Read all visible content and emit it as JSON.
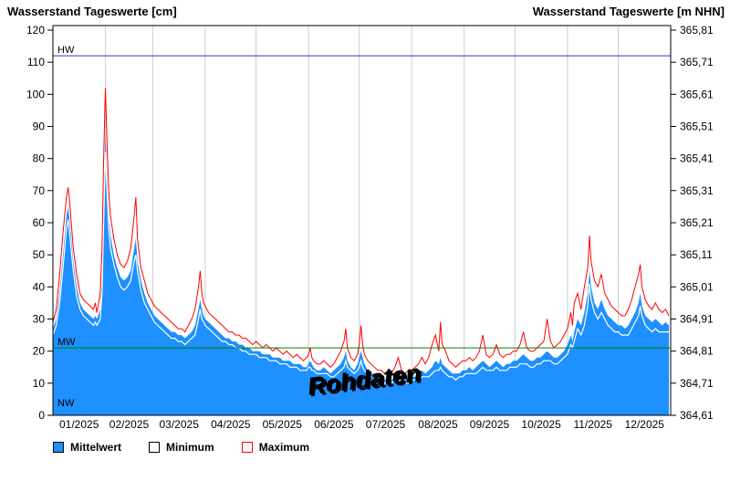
{
  "watermark": {
    "text": "Rohdaten"
  },
  "chart_data": {
    "type": "area",
    "title": "Wasserstand Tageswerte",
    "y_left": {
      "label": "Wasserstand Tageswerte [cm]",
      "min": 0,
      "max": 120,
      "tick_step": 10,
      "tick_values": [
        0,
        10,
        20,
        30,
        40,
        50,
        60,
        70,
        80,
        90,
        100,
        110,
        120
      ]
    },
    "y_right": {
      "label": "Wasserstand Tageswerte [m NHN]",
      "min": 364.61,
      "max": 365.81,
      "tick_step": 0.1,
      "tick_labels": [
        "364,61",
        "364,71",
        "364,81",
        "364,91",
        "365,01",
        "365,11",
        "365,21",
        "365,31",
        "365,41",
        "365,51",
        "365,61",
        "365,71",
        "365,81"
      ]
    },
    "x_axis": {
      "labels": [
        "01/2025",
        "02/2025",
        "03/2025",
        "04/2025",
        "05/2025",
        "06/2025",
        "07/2025",
        "08/2025",
        "09/2025",
        "10/2025",
        "11/2025",
        "12/2025"
      ],
      "month_start_days": [
        0,
        31,
        59,
        90,
        120,
        151,
        181,
        212,
        243,
        273,
        304,
        334,
        365
      ],
      "grid": true
    },
    "reference_lines": [
      {
        "name": "HW",
        "value": 112,
        "color": "#3333CC",
        "line_visible": true
      },
      {
        "name": "MW",
        "value": 21,
        "color": "#008000",
        "line_visible": true
      },
      {
        "name": "NW",
        "value": 2,
        "color": "#888888",
        "line_visible": false
      }
    ],
    "colors": {
      "mittelwert_fill": "#1E90FF",
      "minimum_line": "#FFFFFF",
      "maximum_line": "#FF0000",
      "grid": "#CCCCCC"
    },
    "legend": {
      "position": "bottom",
      "entries": [
        {
          "label": "Mittelwert",
          "swatch_fill": "#1E90FF",
          "swatch_border": "#000000"
        },
        {
          "label": "Minimum",
          "swatch_fill": "#FFFFFF",
          "swatch_border": "#000000"
        },
        {
          "label": "Maximum",
          "swatch_fill": "#FFFFFF",
          "swatch_border": "#FF0000"
        }
      ]
    },
    "series": {
      "x_days": [
        0,
        2,
        4,
        6,
        8,
        9,
        10,
        12,
        14,
        16,
        18,
        20,
        22,
        24,
        25,
        26,
        28,
        29,
        30,
        31,
        32,
        33,
        34,
        36,
        38,
        40,
        42,
        44,
        46,
        48,
        49,
        50,
        52,
        54,
        56,
        58,
        60,
        62,
        64,
        66,
        68,
        70,
        72,
        74,
        76,
        78,
        80,
        82,
        84,
        86,
        87,
        88,
        89,
        90,
        92,
        94,
        96,
        98,
        100,
        102,
        104,
        106,
        108,
        110,
        112,
        114,
        116,
        118,
        120,
        122,
        124,
        126,
        128,
        130,
        132,
        134,
        136,
        138,
        140,
        142,
        144,
        146,
        148,
        150,
        151,
        152,
        153,
        154,
        156,
        158,
        160,
        162,
        164,
        166,
        168,
        170,
        172,
        173,
        174,
        176,
        178,
        180,
        181,
        182,
        183,
        184,
        186,
        188,
        190,
        192,
        194,
        196,
        198,
        200,
        202,
        204,
        206,
        208,
        210,
        212,
        214,
        216,
        218,
        220,
        222,
        224,
        226,
        228,
        229,
        230,
        232,
        234,
        236,
        238,
        240,
        242,
        244,
        246,
        248,
        250,
        252,
        254,
        256,
        258,
        260,
        262,
        264,
        266,
        268,
        270,
        272,
        274,
        276,
        278,
        280,
        282,
        284,
        286,
        288,
        290,
        292,
        294,
        296,
        298,
        300,
        302,
        304,
        306,
        307,
        308,
        310,
        312,
        314,
        316,
        317,
        318,
        320,
        322,
        324,
        326,
        328,
        330,
        332,
        334,
        336,
        338,
        340,
        342,
        344,
        346,
        347,
        348,
        350,
        352,
        354,
        356,
        358,
        360,
        362,
        364
      ],
      "mittelwert": [
        27,
        30,
        38,
        50,
        62,
        65,
        60,
        48,
        40,
        35,
        33,
        32,
        31,
        30,
        31,
        30,
        33,
        42,
        66,
        88,
        74,
        62,
        56,
        50,
        46,
        43,
        42,
        43,
        45,
        52,
        55,
        48,
        42,
        38,
        35,
        33,
        31,
        30,
        29,
        28,
        27,
        26,
        26,
        25,
        25,
        24,
        25,
        26,
        28,
        33,
        36,
        33,
        31,
        30,
        29,
        28,
        27,
        26,
        25,
        24,
        24,
        23,
        23,
        22,
        22,
        21,
        21,
        20,
        20,
        20,
        19,
        19,
        19,
        18,
        18,
        18,
        17,
        17,
        17,
        16,
        16,
        16,
        15,
        15,
        16,
        17,
        16,
        15,
        14,
        14,
        15,
        14,
        13,
        14,
        15,
        16,
        18,
        20,
        17,
        15,
        14,
        16,
        18,
        20,
        18,
        16,
        14,
        13,
        13,
        12,
        12,
        11,
        12,
        11,
        12,
        13,
        12,
        11,
        12,
        12,
        12,
        13,
        14,
        13,
        14,
        15,
        17,
        16,
        18,
        16,
        15,
        14,
        13,
        13,
        13,
        14,
        14,
        15,
        14,
        15,
        16,
        17,
        16,
        15,
        16,
        17,
        16,
        15,
        16,
        16,
        17,
        17,
        18,
        19,
        18,
        17,
        17,
        18,
        18,
        19,
        20,
        19,
        18,
        18,
        19,
        20,
        22,
        25,
        23,
        26,
        30,
        28,
        32,
        38,
        45,
        40,
        35,
        33,
        36,
        33,
        31,
        30,
        29,
        28,
        28,
        27,
        28,
        30,
        32,
        35,
        38,
        34,
        31,
        30,
        29,
        30,
        29,
        28,
        29,
        28
      ],
      "minimum": [
        25,
        28,
        35,
        46,
        58,
        61,
        56,
        45,
        37,
        33,
        31,
        30,
        29,
        28,
        29,
        28,
        30,
        38,
        60,
        82,
        69,
        58,
        52,
        47,
        43,
        40,
        39,
        40,
        42,
        48,
        50,
        45,
        39,
        35,
        33,
        31,
        29,
        28,
        27,
        26,
        25,
        24,
        24,
        23,
        23,
        22,
        23,
        24,
        25,
        30,
        33,
        30,
        29,
        28,
        27,
        26,
        25,
        24,
        23,
        23,
        22,
        22,
        21,
        21,
        20,
        20,
        19,
        19,
        19,
        18,
        18,
        18,
        17,
        17,
        17,
        16,
        16,
        16,
        15,
        15,
        15,
        14,
        14,
        14,
        15,
        15,
        14,
        14,
        13,
        13,
        13,
        13,
        12,
        12,
        13,
        14,
        15,
        17,
        15,
        14,
        13,
        14,
        15,
        17,
        15,
        14,
        13,
        12,
        12,
        11,
        11,
        10,
        10,
        10,
        11,
        11,
        11,
        10,
        10,
        11,
        11,
        11,
        12,
        12,
        12,
        13,
        14,
        14,
        15,
        14,
        13,
        12,
        12,
        11,
        12,
        12,
        13,
        13,
        13,
        13,
        14,
        15,
        14,
        14,
        14,
        15,
        14,
        14,
        14,
        15,
        15,
        15,
        16,
        16,
        16,
        15,
        15,
        16,
        16,
        17,
        17,
        17,
        16,
        16,
        17,
        18,
        19,
        22,
        21,
        23,
        27,
        25,
        28,
        34,
        41,
        36,
        32,
        30,
        32,
        30,
        28,
        27,
        26,
        26,
        25,
        25,
        25,
        27,
        29,
        31,
        34,
        31,
        28,
        27,
        26,
        27,
        26,
        26,
        26,
        26
      ],
      "maximum": [
        29,
        33,
        44,
        57,
        68,
        71,
        66,
        52,
        44,
        38,
        36,
        35,
        34,
        33,
        35,
        32,
        38,
        52,
        80,
        102,
        84,
        70,
        62,
        55,
        50,
        47,
        46,
        48,
        52,
        62,
        68,
        55,
        46,
        42,
        38,
        36,
        34,
        33,
        32,
        31,
        30,
        29,
        28,
        27,
        27,
        26,
        28,
        30,
        33,
        40,
        45,
        38,
        35,
        34,
        32,
        31,
        30,
        29,
        28,
        27,
        26,
        26,
        25,
        25,
        24,
        24,
        23,
        22,
        23,
        22,
        21,
        22,
        21,
        20,
        21,
        20,
        19,
        20,
        19,
        18,
        19,
        18,
        17,
        18,
        19,
        21,
        18,
        17,
        16,
        16,
        17,
        16,
        15,
        16,
        18,
        20,
        23,
        27,
        21,
        18,
        17,
        19,
        22,
        28,
        22,
        19,
        17,
        16,
        15,
        14,
        14,
        13,
        14,
        13,
        15,
        18,
        14,
        13,
        14,
        14,
        15,
        16,
        18,
        16,
        18,
        22,
        25,
        20,
        29,
        22,
        20,
        17,
        16,
        15,
        16,
        17,
        17,
        18,
        17,
        18,
        20,
        25,
        19,
        18,
        19,
        22,
        19,
        18,
        19,
        19,
        20,
        20,
        22,
        26,
        21,
        20,
        20,
        21,
        22,
        23,
        30,
        23,
        21,
        22,
        23,
        25,
        27,
        32,
        28,
        35,
        38,
        33,
        40,
        46,
        56,
        48,
        42,
        40,
        44,
        38,
        36,
        34,
        33,
        32,
        31,
        31,
        33,
        36,
        40,
        44,
        47,
        40,
        36,
        34,
        33,
        35,
        33,
        32,
        33,
        31
      ]
    }
  }
}
